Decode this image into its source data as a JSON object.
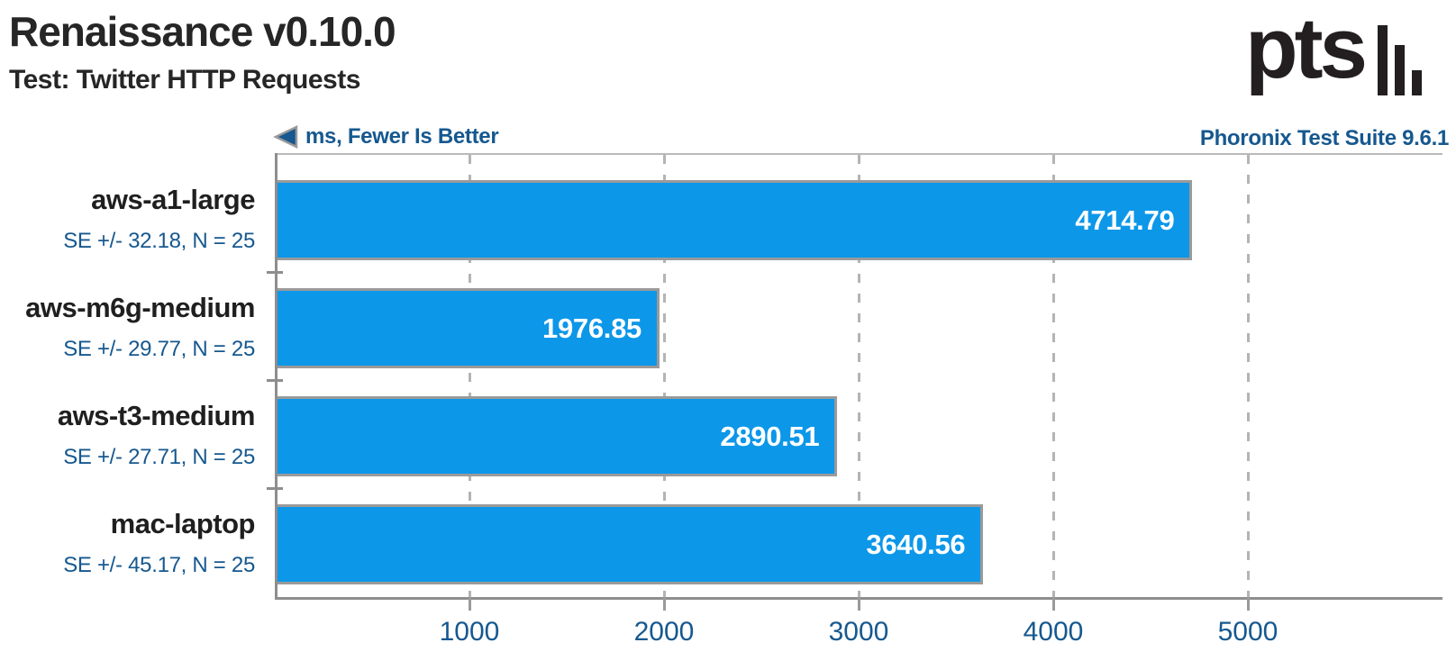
{
  "header": {
    "title": "Renaissance v0.10.0",
    "subtitle": "Test: Twitter HTTP Requests"
  },
  "meta": {
    "unit_note": "ms, Fewer Is Better",
    "suite_version": "Phoronix Test Suite 9.6.1"
  },
  "colors": {
    "bar_fill": "#0c97e9",
    "bar_border": "#9a9a9a",
    "accent_text": "#16588f",
    "axis": "#8e8e8e",
    "gridline": "#b4b4b4",
    "title_text": "#262626",
    "value_text": "#ffffff",
    "logo": "#231f20"
  },
  "chart_data": {
    "type": "bar",
    "orientation": "horizontal",
    "title": "Renaissance v0.10.0",
    "subtitle": "Test: Twitter HTTP Requests",
    "unit": "ms",
    "better": "fewer",
    "categories": [
      "aws-a1-large",
      "aws-m6g-medium",
      "aws-t3-medium",
      "mac-laptop"
    ],
    "values": [
      4714.79,
      1976.85,
      2890.51,
      3640.56
    ],
    "value_labels": [
      "4714.79",
      "1976.85",
      "2890.51",
      "3640.56"
    ],
    "se_labels": [
      "SE +/- 32.18, N = 25",
      "SE +/- 29.77, N = 25",
      "SE +/- 27.71, N = 25",
      "SE +/- 45.17, N = 25"
    ],
    "xlim": [
      0,
      6000
    ],
    "x_ticks": [
      1000,
      2000,
      3000,
      4000,
      5000
    ],
    "grid": "dashed-vertical",
    "legend_position": "none"
  }
}
